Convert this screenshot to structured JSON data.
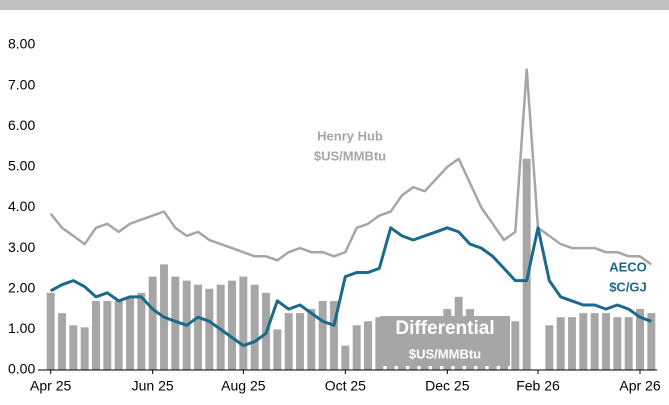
{
  "chart_data": {
    "type": "bar_line",
    "categories": [
      "Apr 25",
      null,
      null,
      null,
      null,
      null,
      null,
      null,
      null,
      "Jun 25",
      null,
      null,
      null,
      null,
      null,
      null,
      null,
      "Aug 25",
      null,
      null,
      null,
      null,
      null,
      null,
      null,
      null,
      "Oct 25",
      null,
      null,
      null,
      null,
      null,
      null,
      null,
      null,
      "Dec 25",
      null,
      null,
      null,
      null,
      null,
      null,
      null,
      "Feb 26",
      null,
      null,
      null,
      null,
      null,
      null,
      null,
      null,
      "Apr 26",
      null
    ],
    "series": [
      {
        "name": "Differential",
        "color": "#a6a6a6",
        "kind": "bar",
        "values": [
          1.9,
          1.4,
          1.1,
          1.05,
          1.7,
          1.7,
          1.7,
          1.8,
          1.9,
          2.3,
          2.6,
          2.3,
          2.2,
          2.1,
          2.0,
          2.1,
          2.2,
          2.3,
          2.1,
          1.9,
          1.0,
          1.4,
          1.4,
          1.5,
          1.7,
          1.7,
          0.6,
          1.1,
          1.2,
          1.3,
          0.4,
          1.0,
          1.3,
          1.1,
          1.3,
          1.5,
          1.8,
          1.5,
          1.0,
          0.8,
          0.7,
          1.2,
          5.2,
          0.0,
          1.1,
          1.3,
          1.3,
          1.4,
          1.4,
          1.4,
          1.3,
          1.3,
          1.5,
          1.4
        ]
      },
      {
        "name": "Henry Hub",
        "color": "#a6a6a6",
        "kind": "line",
        "values": [
          3.85,
          3.5,
          3.3,
          3.1,
          3.5,
          3.6,
          3.4,
          3.6,
          3.7,
          3.8,
          3.9,
          3.5,
          3.3,
          3.4,
          3.2,
          3.1,
          3.0,
          2.9,
          2.8,
          2.8,
          2.7,
          2.9,
          3.0,
          2.9,
          2.9,
          2.8,
          2.9,
          3.5,
          3.6,
          3.8,
          3.9,
          4.3,
          4.5,
          4.4,
          4.7,
          5.0,
          5.2,
          4.6,
          4.0,
          3.6,
          3.2,
          3.4,
          7.4,
          3.5,
          3.3,
          3.1,
          3.0,
          3.0,
          3.0,
          2.9,
          2.9,
          2.8,
          2.8,
          2.6
        ]
      },
      {
        "name": "AECO",
        "color": "#1b6a8c",
        "kind": "line",
        "values": [
          1.95,
          2.1,
          2.2,
          2.05,
          1.8,
          1.9,
          1.7,
          1.8,
          1.8,
          1.5,
          1.3,
          1.2,
          1.1,
          1.3,
          1.2,
          1.0,
          0.8,
          0.6,
          0.7,
          0.9,
          1.7,
          1.5,
          1.6,
          1.4,
          1.2,
          1.1,
          2.3,
          2.4,
          2.4,
          2.5,
          3.5,
          3.3,
          3.2,
          3.3,
          3.4,
          3.5,
          3.4,
          3.1,
          3.0,
          2.8,
          2.5,
          2.2,
          2.2,
          3.5,
          2.2,
          1.8,
          1.7,
          1.6,
          1.6,
          1.5,
          1.6,
          1.5,
          1.3,
          1.2
        ]
      }
    ],
    "annotations": [
      "Henry Hub",
      "$US/MMBtu",
      "AECO",
      "$C/GJ",
      "Differential",
      "$US/MMBtu"
    ],
    "ylim": [
      0,
      8
    ],
    "yticks": [
      {
        "value": 0,
        "label": "0.00"
      },
      {
        "value": 1,
        "label": "1.00"
      },
      {
        "value": 2,
        "label": "2.00"
      },
      {
        "value": 3,
        "label": "3.00"
      },
      {
        "value": 4,
        "label": "4.00"
      },
      {
        "value": 5,
        "label": "5.00"
      },
      {
        "value": 6,
        "label": "6.00"
      },
      {
        "value": 7,
        "label": "7.00"
      },
      {
        "value": 8,
        "label": "8.00"
      }
    ],
    "grid": false
  }
}
